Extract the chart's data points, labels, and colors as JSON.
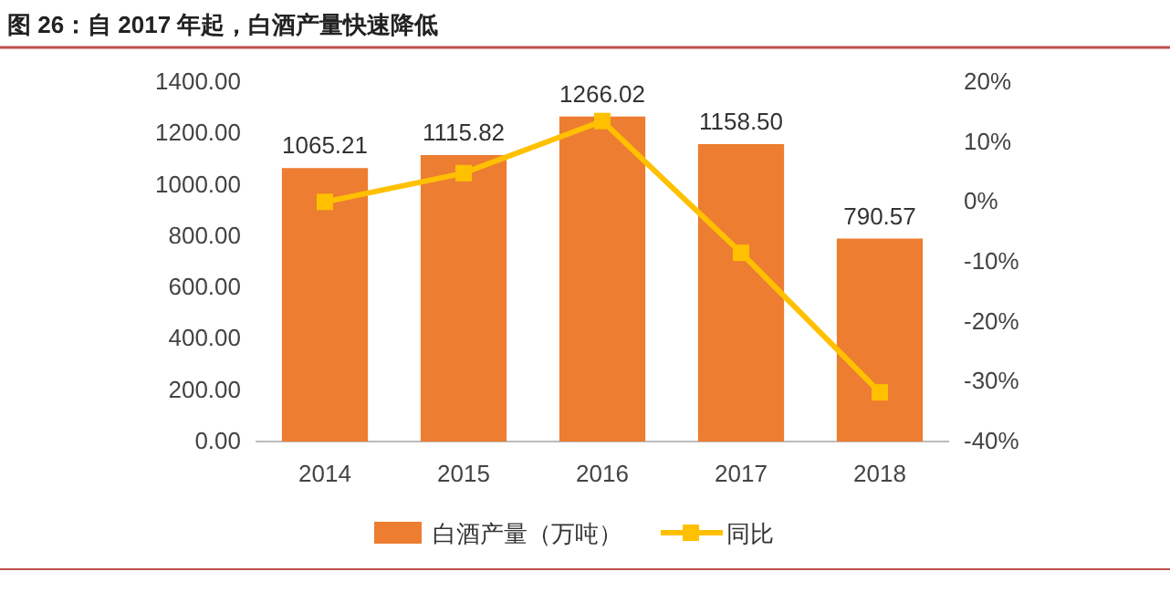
{
  "chart_data": {
    "type": "bar",
    "title": "图 26：自 2017 年起，白酒产量快速降低",
    "categories": [
      "2014",
      "2015",
      "2016",
      "2017",
      "2018"
    ],
    "series": [
      {
        "name": "白酒产量（万吨）",
        "color": "#ed7d31",
        "values": [
          1065.21,
          1115.82,
          1266.02,
          1158.5,
          790.57
        ],
        "value_labels": [
          "1065.21",
          "1115.82",
          "1266.02",
          "1158.50",
          "790.57"
        ]
      },
      {
        "name": "同比",
        "type": "line",
        "axis": "y2",
        "color": "#ffc000",
        "marker": "square",
        "values": [
          0,
          4.8,
          13.5,
          -8.5,
          -31.8
        ]
      }
    ],
    "ylim": [
      0,
      1400
    ],
    "yticks": [
      {
        "value": 0,
        "label": "0.00"
      },
      {
        "value": 200,
        "label": "200.00"
      },
      {
        "value": 400,
        "label": "400.00"
      },
      {
        "value": 600,
        "label": "600.00"
      },
      {
        "value": 800,
        "label": "800.00"
      },
      {
        "value": 1000,
        "label": "1000.00"
      },
      {
        "value": 1200,
        "label": "1200.00"
      },
      {
        "value": 1400,
        "label": "1400.00"
      }
    ],
    "y2lim": [
      -40,
      20
    ],
    "y2ticks": [
      {
        "value": -40,
        "label": "-40%"
      },
      {
        "value": -30,
        "label": "-30%"
      },
      {
        "value": -20,
        "label": "-20%"
      },
      {
        "value": -10,
        "label": "-10%"
      },
      {
        "value": 0,
        "label": "0%"
      },
      {
        "value": 10,
        "label": "10%"
      },
      {
        "value": 20,
        "label": "20%"
      }
    ],
    "grid": false,
    "legend": "bottom"
  }
}
